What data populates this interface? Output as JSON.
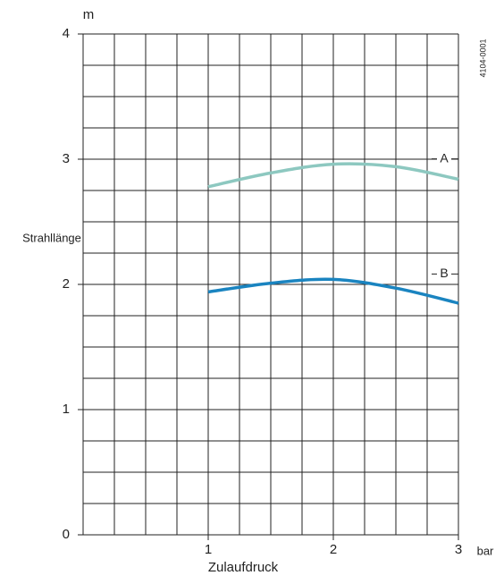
{
  "chart_data": {
    "type": "line",
    "y_unit": "m",
    "x_unit": "bar",
    "ylabel": "Strahllänge",
    "xlabel": "Zulaufdruck",
    "figure_code": "4104-0001",
    "xlim": [
      0,
      3
    ],
    "ylim": [
      0,
      4
    ],
    "xticks": [
      1,
      2,
      3
    ],
    "yticks": [
      0,
      1,
      2,
      3,
      4
    ],
    "xgrid": [
      0,
      0.25,
      0.5,
      0.75,
      1,
      1.25,
      1.5,
      1.75,
      2,
      2.25,
      2.5,
      2.75,
      3
    ],
    "ygrid": [
      0,
      0.25,
      0.5,
      0.75,
      1,
      1.25,
      1.5,
      1.75,
      2,
      2.25,
      2.5,
      2.75,
      3,
      3.25,
      3.5,
      3.75,
      4
    ],
    "x": [
      1,
      1.5,
      2,
      2.5,
      3
    ],
    "series": [
      {
        "name": "A",
        "color": "#8dc8c0",
        "values": [
          2.78,
          2.89,
          2.96,
          2.94,
          2.84
        ]
      },
      {
        "name": "B",
        "color": "#1a84c0",
        "values": [
          1.94,
          2.01,
          2.04,
          1.97,
          1.85
        ]
      }
    ]
  }
}
